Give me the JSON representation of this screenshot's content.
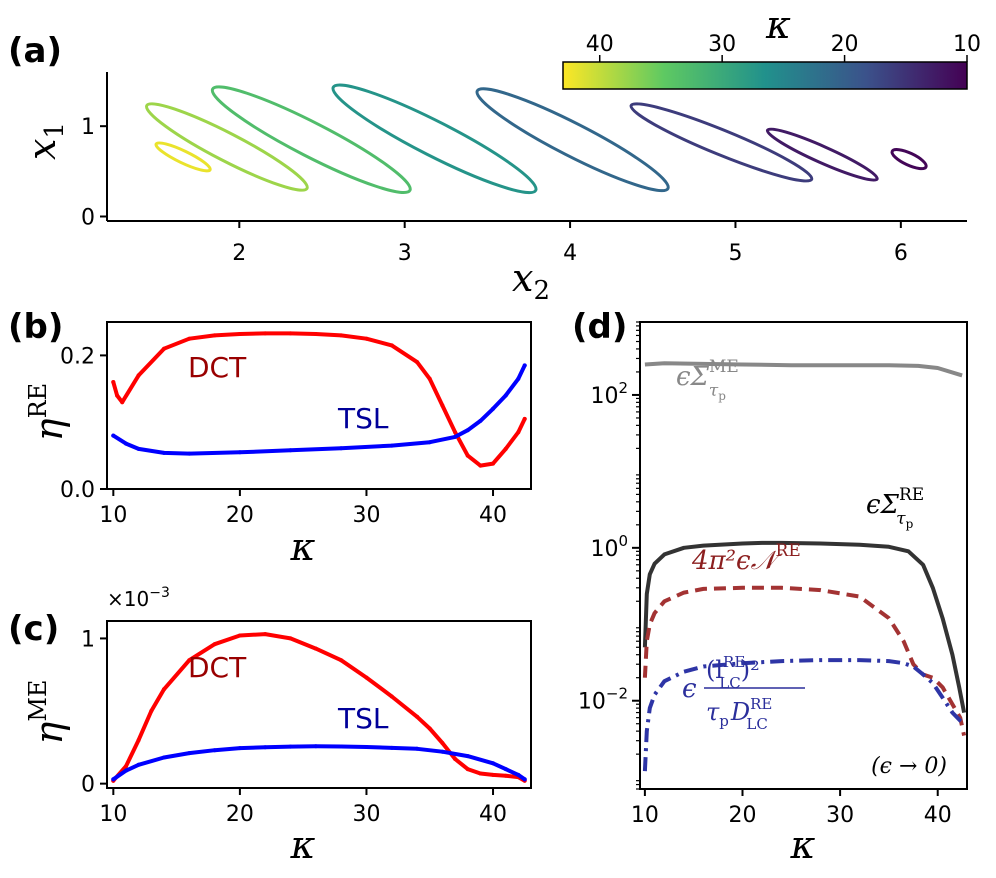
{
  "panels": {
    "a": {
      "label": "(a)",
      "xlabel": "x",
      "xlabel_sub": "2",
      "ylabel": "x",
      "ylabel_sub": "1",
      "xticks": [
        "2",
        "3",
        "4",
        "5",
        "6"
      ],
      "yticks": [
        "0",
        "1"
      ],
      "colorbar": {
        "label": "κ",
        "ticks": [
          "40",
          "30",
          "20",
          "10"
        ],
        "range": [
          43,
          10
        ],
        "colormap": "viridis"
      }
    },
    "b": {
      "label": "(b)",
      "ylabel": "η",
      "ylabel_sup": "RE",
      "xlabel": "κ",
      "xticks": [
        "10",
        "20",
        "30",
        "40"
      ],
      "yticks": [
        "0.0",
        "0.2"
      ],
      "series_labels": [
        "DCT",
        "TSL"
      ]
    },
    "c": {
      "label": "(c)",
      "ylabel": "η",
      "ylabel_sup": "ME",
      "xlabel": "κ",
      "xticks": [
        "10",
        "20",
        "30",
        "40"
      ],
      "yticks": [
        "0",
        "1"
      ],
      "scale": "×10",
      "scale_exp": "−3",
      "series_labels": [
        "DCT",
        "TSL"
      ]
    },
    "d": {
      "label": "(d)",
      "xlabel": "κ",
      "xticks": [
        "10",
        "20",
        "30",
        "40"
      ],
      "yticks": [
        "10",
        "10",
        "10"
      ],
      "ytick_exps": [
        "2",
        "0",
        "−2"
      ],
      "note": "(ϵ → 0)",
      "curve_labels": {
        "sigma_me": "ϵΣ",
        "sigma_me_sup": "ME",
        "sigma_me_sub": "τ",
        "sigma_me_subsub": "p",
        "sigma_re": "ϵΣ",
        "sigma_re_sup": "RE",
        "sigma_re_sub": "τ",
        "sigma_re_subsub": "p",
        "n_re": "4π²ϵ𝒩",
        "n_re_sup": "RE",
        "frac_eps": "ϵ",
        "frac_num": "(l",
        "frac_num_sup": "RE",
        "frac_num_sub": "LC",
        "frac_num_close": ")²",
        "frac_den": "τ",
        "frac_den_sub": "p",
        "frac_den_D": "D",
        "frac_den_sup": "RE",
        "frac_den_sub2": "LC"
      }
    }
  },
  "colors": {
    "dct": "#ff0000",
    "dct_label": "#990000",
    "tsl": "#0000ff",
    "tsl_label": "#000099",
    "sigma_me": "#888888",
    "sigma_re": "#333333",
    "n_re": "#a33333",
    "frac": "#2e35a6",
    "frac_label": "#2b2f9c",
    "grey_label": "#888888",
    "nre_label": "#8c1f1f"
  },
  "chart_data": [
    {
      "panel": "a",
      "type": "line",
      "description_free": true,
      "xlim": [
        1.2,
        6.4
      ],
      "ylim": [
        -0.05,
        1.6
      ],
      "series": [
        {
          "kappa": 42,
          "x_range": [
            1.5,
            1.82
          ],
          "y_range": [
            0.52,
            0.8
          ]
        },
        {
          "kappa": 38,
          "x_range": [
            1.45,
            2.4
          ],
          "y_range": [
            0.32,
            1.22
          ]
        },
        {
          "kappa": 33,
          "x_range": [
            1.85,
            3.02
          ],
          "y_range": [
            0.3,
            1.4
          ]
        },
        {
          "kappa": 27,
          "x_range": [
            2.58,
            3.78
          ],
          "y_range": [
            0.3,
            1.42
          ]
        },
        {
          "kappa": 21,
          "x_range": [
            3.45,
            4.58
          ],
          "y_range": [
            0.32,
            1.38
          ]
        },
        {
          "kappa": 16,
          "x_range": [
            4.38,
            5.45
          ],
          "y_range": [
            0.42,
            1.22
          ]
        },
        {
          "kappa": 12.5,
          "x_range": [
            5.2,
            5.85
          ],
          "y_range": [
            0.42,
            0.95
          ]
        },
        {
          "kappa": 10.5,
          "x_range": [
            5.95,
            6.15
          ],
          "y_range": [
            0.55,
            0.72
          ]
        }
      ]
    },
    {
      "panel": "b",
      "type": "line",
      "xlim": [
        9.5,
        43
      ],
      "ylim": [
        0,
        0.25
      ],
      "series": [
        {
          "name": "DCT",
          "x": [
            10,
            10.3,
            10.7,
            12,
            14,
            16,
            18,
            20,
            22,
            24,
            26,
            28,
            30,
            32,
            34,
            35,
            36,
            37,
            38,
            39,
            40,
            41,
            42,
            42.5
          ],
          "y": [
            0.16,
            0.14,
            0.13,
            0.17,
            0.21,
            0.225,
            0.23,
            0.232,
            0.233,
            0.233,
            0.232,
            0.23,
            0.225,
            0.215,
            0.19,
            0.165,
            0.125,
            0.085,
            0.05,
            0.035,
            0.038,
            0.06,
            0.085,
            0.105
          ]
        },
        {
          "name": "TSL",
          "x": [
            10,
            11,
            12,
            14,
            16,
            20,
            24,
            28,
            32,
            35,
            37,
            38,
            39,
            40,
            41,
            42,
            42.5
          ],
          "y": [
            0.08,
            0.068,
            0.06,
            0.054,
            0.053,
            0.055,
            0.058,
            0.061,
            0.065,
            0.07,
            0.078,
            0.088,
            0.102,
            0.12,
            0.14,
            0.165,
            0.185
          ]
        }
      ]
    },
    {
      "panel": "c",
      "type": "line",
      "xlim": [
        9.5,
        43
      ],
      "ylim": [
        -0.03,
        1.12
      ],
      "series": [
        {
          "name": "DCT",
          "x": [
            10,
            11,
            12,
            13,
            14,
            16,
            18,
            20,
            22,
            24,
            26,
            28,
            30,
            32,
            34,
            35,
            36,
            37,
            38,
            39,
            40,
            41,
            42,
            42.5
          ],
          "y": [
            0.02,
            0.12,
            0.3,
            0.5,
            0.65,
            0.85,
            0.96,
            1.02,
            1.03,
            1.0,
            0.93,
            0.85,
            0.73,
            0.6,
            0.46,
            0.38,
            0.28,
            0.17,
            0.1,
            0.07,
            0.06,
            0.055,
            0.045,
            0.02
          ]
        },
        {
          "name": "TSL",
          "x": [
            10,
            11,
            12,
            14,
            16,
            18,
            20,
            22,
            24,
            26,
            28,
            30,
            32,
            34,
            36,
            38,
            40,
            41,
            42,
            42.5
          ],
          "y": [
            0.03,
            0.09,
            0.13,
            0.18,
            0.21,
            0.23,
            0.245,
            0.25,
            0.255,
            0.257,
            0.256,
            0.252,
            0.246,
            0.24,
            0.22,
            0.19,
            0.14,
            0.1,
            0.06,
            0.03
          ]
        }
      ]
    },
    {
      "panel": "d",
      "type": "line",
      "yscale": "log",
      "xlim": [
        9.5,
        43
      ],
      "ylim": [
        0.0007,
        900
      ],
      "series": [
        {
          "name": "ϵΣ^ME_τp",
          "style": "solid",
          "x": [
            10,
            12,
            16,
            20,
            25,
            30,
            35,
            38,
            40,
            42.5
          ],
          "y": [
            250,
            260,
            255,
            250,
            245,
            245,
            245,
            240,
            225,
            180
          ]
        },
        {
          "name": "ϵΣ^RE_τp",
          "style": "solid",
          "x": [
            10,
            10.2,
            10.5,
            11,
            12,
            14,
            16,
            20,
            22,
            24,
            28,
            32,
            35,
            37,
            38.5,
            39.5,
            40.5,
            41.5,
            42.2,
            42.7
          ],
          "y": [
            0.05,
            0.25,
            0.45,
            0.62,
            0.82,
            1.0,
            1.07,
            1.14,
            1.16,
            1.16,
            1.14,
            1.1,
            1.03,
            0.9,
            0.6,
            0.3,
            0.12,
            0.04,
            0.015,
            0.007
          ]
        },
        {
          "name": "4π²ϵN^RE",
          "style": "dashed",
          "x": [
            10,
            10.2,
            10.5,
            11,
            12,
            14,
            16,
            20,
            22,
            24,
            28,
            32,
            35,
            36.5,
            37.5,
            38.5,
            39.5,
            40.5,
            41.5,
            42.3,
            42.7
          ],
          "y": [
            0.02,
            0.06,
            0.1,
            0.14,
            0.2,
            0.26,
            0.29,
            0.3,
            0.3,
            0.3,
            0.28,
            0.23,
            0.12,
            0.06,
            0.03,
            0.022,
            0.02,
            0.015,
            0.009,
            0.006,
            0.0035
          ]
        },
        {
          "name": "ϵ(l^RE_LC)²/(τp D^RE_LC)",
          "style": "dashdot",
          "x": [
            10,
            10.2,
            10.5,
            11,
            12,
            14,
            16,
            20,
            24,
            28,
            32,
            35,
            36.5,
            37.5,
            38.5,
            39.5,
            40.5,
            41.5,
            42.3,
            42.7
          ],
          "y": [
            0.0012,
            0.004,
            0.008,
            0.012,
            0.018,
            0.024,
            0.028,
            0.031,
            0.033,
            0.034,
            0.034,
            0.033,
            0.031,
            0.028,
            0.022,
            0.017,
            0.011,
            0.007,
            0.0055,
            0.005
          ]
        }
      ]
    }
  ]
}
